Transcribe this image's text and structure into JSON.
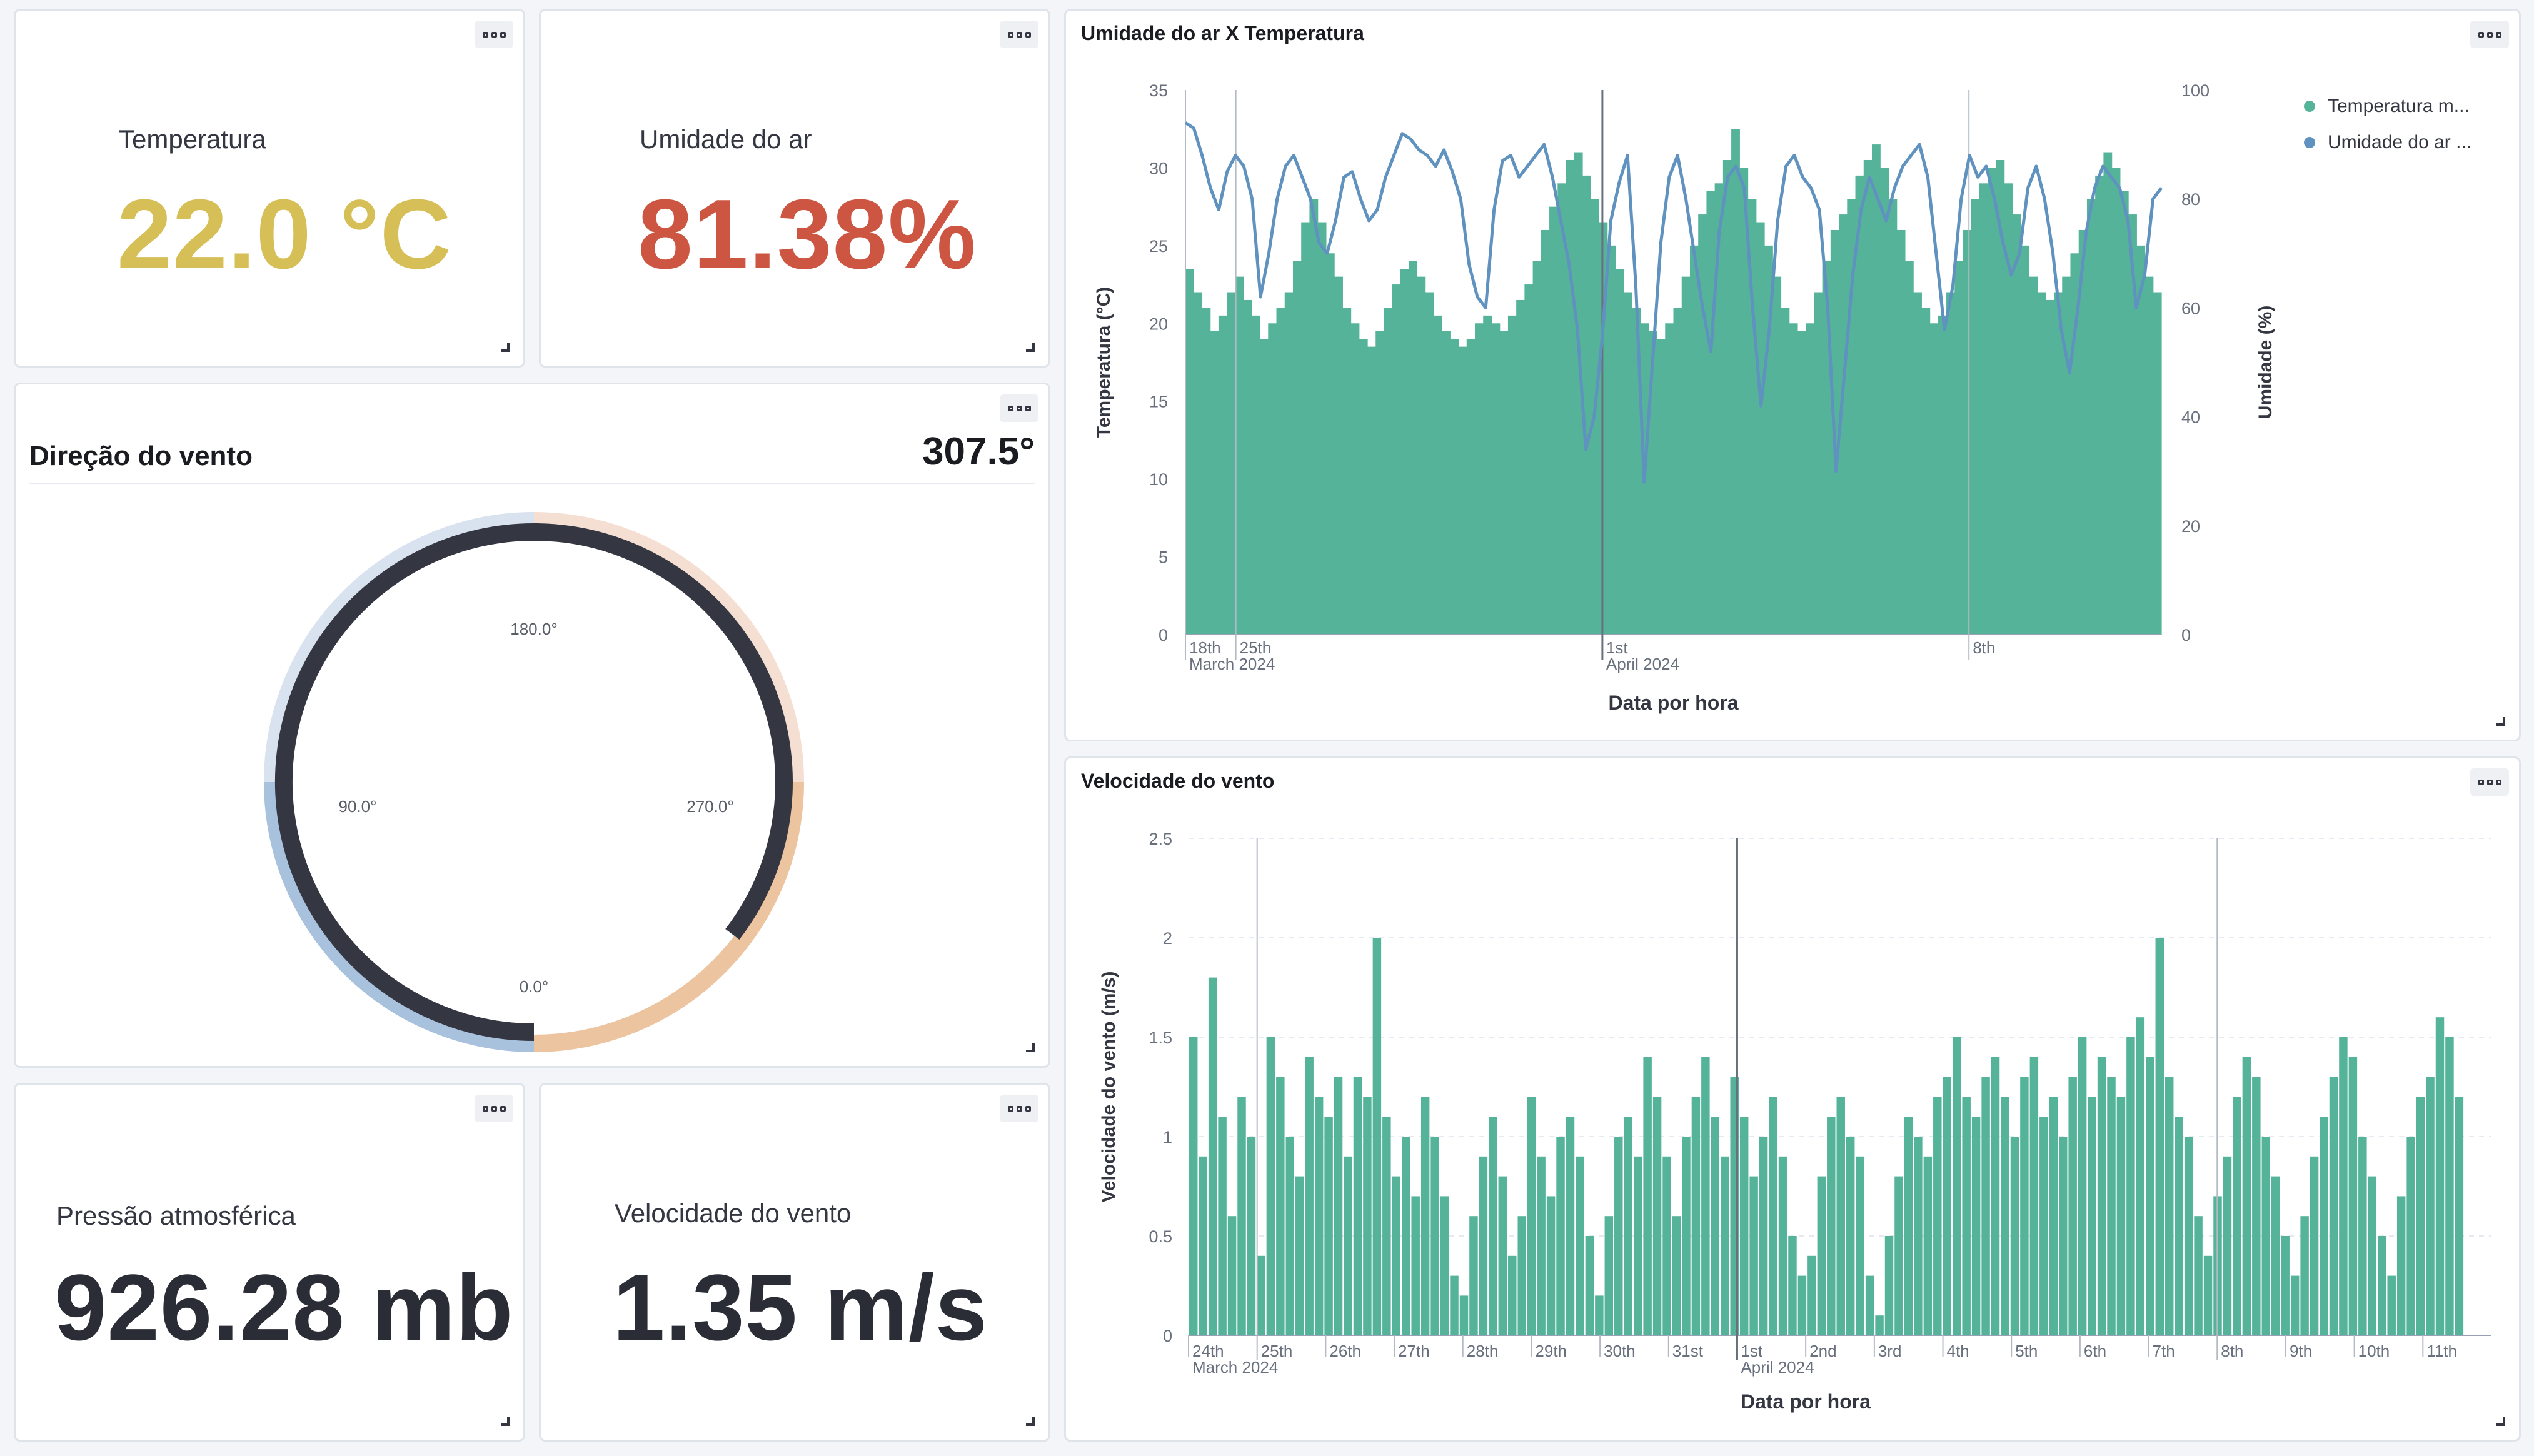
{
  "temperature": {
    "label": "Temperatura",
    "value": "22.0 °C",
    "color": "#d6bf57"
  },
  "humidity": {
    "label": "Umidade do ar",
    "value": "81.38%",
    "color": "#cc5642"
  },
  "wind_direction": {
    "title": "Direção do vento",
    "value": "307.5°",
    "ticks": [
      "180.0°",
      "90.0°",
      "270.0°",
      "0.0°"
    ]
  },
  "pressure": {
    "label": "Pressão atmosférica",
    "value": "926.28 mb"
  },
  "wind_speed_metric": {
    "label": "Velocidade do vento",
    "value": "1.35 m/s"
  },
  "chart_humidity_temp": {
    "title": "Umidade do ar X Temperatura",
    "legend": [
      "Temperatura m...",
      "Umidade do ar ..."
    ]
  },
  "chart_wind": {
    "title": "Velocidade do vento"
  },
  "chart_data": [
    {
      "type": "bar",
      "title": "Umidade do ar X Temperatura",
      "xlabel": "Data por hora",
      "ylabel": "Temperatura (°C)",
      "y2label": "Umidade (%)",
      "ylim": [
        0,
        35
      ],
      "y2lim": [
        0,
        100
      ],
      "yticks": [
        "0",
        "5",
        "10",
        "15",
        "20",
        "25",
        "30",
        "35"
      ],
      "y2ticks": [
        "0",
        "20",
        "40",
        "60",
        "80",
        "100"
      ],
      "xticks": [
        {
          "label": "18th",
          "sub": "March 2024",
          "day": 0
        },
        {
          "label": "25th",
          "sub": "",
          "day": 1.1
        },
        {
          "label": "1st",
          "sub": "April 2024",
          "day": 9.1
        },
        {
          "label": "8th",
          "sub": "",
          "day": 17.1
        }
      ],
      "x_range_days": [
        0,
        21.3
      ],
      "legend_position": "top-right",
      "series": [
        {
          "name": "Temperatura m...",
          "kind": "bar",
          "color": "#54b399",
          "values": [
            23.5,
            22.0,
            21.0,
            19.5,
            20.5,
            22.0,
            23.0,
            21.5,
            20.5,
            19.0,
            20.0,
            21.0,
            22.0,
            24.0,
            26.5,
            28.0,
            26.5,
            24.5,
            23.0,
            21.0,
            20.0,
            19.0,
            18.5,
            19.5,
            21.0,
            22.5,
            23.5,
            24.0,
            23.0,
            22.0,
            20.5,
            19.5,
            19.0,
            18.5,
            19.0,
            20.0,
            20.5,
            20.0,
            19.5,
            20.5,
            21.5,
            22.5,
            24.0,
            26.0,
            27.5,
            29.0,
            30.5,
            31.0,
            29.5,
            28.0,
            26.5,
            25.0,
            23.5,
            22.0,
            21.0,
            20.0,
            19.5,
            19.0,
            20.0,
            21.0,
            23.0,
            25.0,
            27.0,
            28.5,
            29.0,
            30.5,
            32.5,
            30.0,
            28.0,
            26.5,
            25.0,
            23.0,
            21.0,
            20.0,
            19.5,
            20.0,
            22.0,
            24.0,
            26.0,
            27.0,
            28.0,
            29.5,
            30.5,
            31.5,
            30.0,
            28.0,
            26.0,
            24.0,
            22.0,
            21.0,
            20.0,
            20.5,
            22.0,
            24.0,
            26.0,
            28.0,
            29.0,
            30.0,
            30.5,
            29.0,
            27.0,
            25.0,
            23.0,
            22.0,
            21.5,
            22.0,
            23.0,
            24.5,
            26.0,
            28.0,
            29.5,
            31.0,
            30.0,
            28.5,
            27.0,
            25.0,
            23.0,
            22.0
          ],
          "x_start_day": 0,
          "x_end_day": 21.3
        },
        {
          "name": "Umidade do ar ...",
          "kind": "line",
          "color": "#6092c0",
          "axis": "right",
          "values": [
            94,
            93,
            88,
            82,
            78,
            85,
            88,
            86,
            80,
            62,
            70,
            80,
            86,
            88,
            84,
            80,
            72,
            70,
            76,
            84,
            85,
            80,
            76,
            78,
            84,
            88,
            92,
            91,
            89,
            88,
            86,
            89,
            85,
            80,
            68,
            62,
            60,
            78,
            87,
            88,
            84,
            86,
            88,
            90,
            84,
            76,
            68,
            56,
            34,
            40,
            55,
            76,
            83,
            88,
            64,
            28,
            50,
            72,
            84,
            88,
            80,
            70,
            60,
            52,
            74,
            84,
            86,
            82,
            60,
            42,
            56,
            76,
            86,
            88,
            84,
            82,
            78,
            60,
            30,
            48,
            66,
            78,
            84,
            80,
            76,
            82,
            86,
            88,
            90,
            84,
            70,
            56,
            64,
            80,
            88,
            84,
            86,
            80,
            72,
            66,
            70,
            82,
            86,
            80,
            70,
            56,
            48,
            60,
            74,
            82,
            86,
            84,
            82,
            76,
            60,
            66,
            80,
            82
          ],
          "x_start_day": 0,
          "x_end_day": 21.3
        }
      ]
    },
    {
      "type": "bar",
      "title": "Velocidade do vento",
      "xlabel": "Data por hora",
      "ylabel": "Velocidade do vento (m/s)",
      "ylim": [
        0,
        2.5
      ],
      "yticks": [
        "0",
        "0.5",
        "1",
        "1.5",
        "2",
        "2.5"
      ],
      "xticks": [
        {
          "label": "24th",
          "sub": "March 2024",
          "day": 0
        },
        {
          "label": "25th",
          "sub": "",
          "day": 1
        },
        {
          "label": "26th",
          "sub": "",
          "day": 2
        },
        {
          "label": "27th",
          "sub": "",
          "day": 3
        },
        {
          "label": "28th",
          "sub": "",
          "day": 4
        },
        {
          "label": "29th",
          "sub": "",
          "day": 5
        },
        {
          "label": "30th",
          "sub": "",
          "day": 6
        },
        {
          "label": "31st",
          "sub": "",
          "day": 7
        },
        {
          "label": "1st",
          "sub": "April 2024",
          "day": 8
        },
        {
          "label": "2nd",
          "sub": "",
          "day": 9
        },
        {
          "label": "3rd",
          "sub": "",
          "day": 10
        },
        {
          "label": "4th",
          "sub": "",
          "day": 11
        },
        {
          "label": "5th",
          "sub": "",
          "day": 12
        },
        {
          "label": "6th",
          "sub": "",
          "day": 13
        },
        {
          "label": "7th",
          "sub": "",
          "day": 14
        },
        {
          "label": "8th",
          "sub": "",
          "day": 15
        },
        {
          "label": "9th",
          "sub": "",
          "day": 16
        },
        {
          "label": "10th",
          "sub": "",
          "day": 17
        },
        {
          "label": "11th",
          "sub": "",
          "day": 18
        }
      ],
      "x_range_days": [
        0,
        19
      ],
      "series": [
        {
          "name": "",
          "kind": "bar",
          "color": "#54b399",
          "values": [
            1.5,
            0.9,
            1.8,
            1.1,
            0.6,
            1.2,
            1.0,
            0.4,
            1.5,
            1.3,
            1.0,
            0.8,
            1.4,
            1.2,
            1.1,
            1.3,
            0.9,
            1.3,
            1.2,
            2.0,
            1.1,
            0.8,
            1.0,
            0.7,
            1.2,
            1.0,
            0.7,
            0.3,
            0.2,
            0.6,
            0.9,
            1.1,
            0.8,
            0.4,
            0.6,
            1.2,
            0.9,
            0.7,
            1.0,
            1.1,
            0.9,
            0.5,
            0.2,
            0.6,
            1.0,
            1.1,
            0.9,
            1.4,
            1.2,
            0.9,
            0.6,
            1.0,
            1.2,
            1.4,
            1.1,
            0.9,
            1.3,
            1.1,
            0.8,
            1.0,
            1.2,
            0.9,
            0.5,
            0.3,
            0.4,
            0.8,
            1.1,
            1.2,
            1.0,
            0.9,
            0.3,
            0.1,
            0.5,
            0.8,
            1.1,
            1.0,
            0.9,
            1.2,
            1.3,
            1.5,
            1.2,
            1.1,
            1.3,
            1.4,
            1.2,
            1.0,
            1.3,
            1.4,
            1.1,
            1.2,
            1.0,
            1.3,
            1.5,
            1.2,
            1.4,
            1.3,
            1.2,
            1.5,
            1.6,
            1.4,
            2.0,
            1.3,
            1.1,
            1.0,
            0.6,
            0.4,
            0.7,
            0.9,
            1.2,
            1.4,
            1.3,
            1.0,
            0.8,
            0.5,
            0.3,
            0.6,
            0.9,
            1.1,
            1.3,
            1.5,
            1.4,
            1.0,
            0.8,
            0.5,
            0.3,
            0.7,
            1.0,
            1.2,
            1.3,
            1.6,
            1.5,
            1.2
          ],
          "x_start_day": 0,
          "x_end_day": 18.6
        }
      ]
    },
    {
      "type": "gauge",
      "title": "Direção do vento",
      "value": 307.5,
      "range": [
        0,
        360
      ],
      "ticks": [
        0,
        90,
        180,
        270
      ]
    }
  ]
}
